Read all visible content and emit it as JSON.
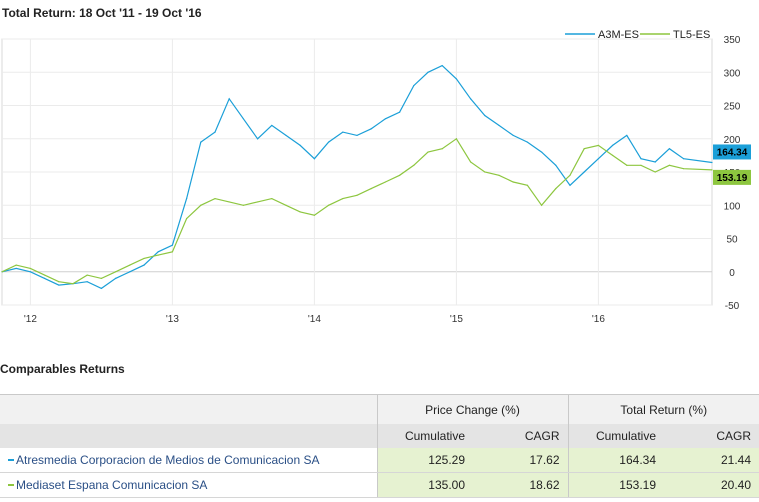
{
  "title": "Total Return: 18 Oct '11 - 19 Oct '16",
  "chart_data": {
    "type": "line",
    "x_ticks": [
      "'12",
      "'13",
      "'14",
      "'15",
      "'16"
    ],
    "y_ticks": [
      350,
      300,
      250,
      200,
      150,
      100,
      50,
      0,
      -50
    ],
    "ylim": [
      -50,
      350
    ],
    "x": [
      2011.8,
      2011.9,
      2012.0,
      2012.1,
      2012.2,
      2012.3,
      2012.4,
      2012.5,
      2012.6,
      2012.7,
      2012.8,
      2012.9,
      2013.0,
      2013.1,
      2013.2,
      2013.3,
      2013.4,
      2013.5,
      2013.6,
      2013.7,
      2013.8,
      2013.9,
      2014.0,
      2014.1,
      2014.2,
      2014.3,
      2014.4,
      2014.5,
      2014.6,
      2014.7,
      2014.8,
      2014.9,
      2015.0,
      2015.1,
      2015.2,
      2015.3,
      2015.4,
      2015.5,
      2015.6,
      2015.7,
      2015.8,
      2015.9,
      2016.0,
      2016.1,
      2016.2,
      2016.3,
      2016.4,
      2016.5,
      2016.6,
      2016.8
    ],
    "series": [
      {
        "name": "A3M-ES",
        "color": "#1b9fd8",
        "last_value": "164.34",
        "values": [
          0,
          5,
          0,
          -10,
          -20,
          -18,
          -15,
          -25,
          -10,
          0,
          10,
          30,
          40,
          110,
          195,
          210,
          260,
          230,
          200,
          220,
          205,
          190,
          170,
          195,
          210,
          205,
          215,
          230,
          240,
          280,
          300,
          310,
          290,
          260,
          235,
          220,
          205,
          195,
          180,
          160,
          130,
          150,
          170,
          190,
          205,
          170,
          165,
          185,
          170,
          164.34
        ]
      },
      {
        "name": "TL5-ES",
        "color": "#8dc63f",
        "last_value": "153.19",
        "values": [
          0,
          10,
          5,
          -5,
          -15,
          -18,
          -5,
          -10,
          0,
          10,
          20,
          25,
          30,
          80,
          100,
          110,
          105,
          100,
          105,
          110,
          100,
          90,
          85,
          100,
          110,
          115,
          125,
          135,
          145,
          160,
          180,
          185,
          200,
          165,
          150,
          145,
          135,
          130,
          100,
          125,
          145,
          185,
          190,
          175,
          160,
          160,
          150,
          160,
          155,
          153.19
        ]
      }
    ]
  },
  "comparables": {
    "title": "Comparables Returns",
    "group_price": "Price Change (%)",
    "group_total": "Total Return (%)",
    "col_cumulative": "Cumulative",
    "col_cagr": "CAGR",
    "rows": [
      {
        "name": "Atresmedia Corporacion de Medios de Comunicacion SA",
        "color": "#1b9fd8",
        "pc_cum": "125.29",
        "pc_cagr": "17.62",
        "tr_cum": "164.34",
        "tr_cagr": "21.44"
      },
      {
        "name": "Mediaset Espana Comunicacion SA",
        "color": "#8dc63f",
        "pc_cum": "135.00",
        "pc_cagr": "18.62",
        "tr_cum": "153.19",
        "tr_cagr": "20.40"
      }
    ]
  }
}
